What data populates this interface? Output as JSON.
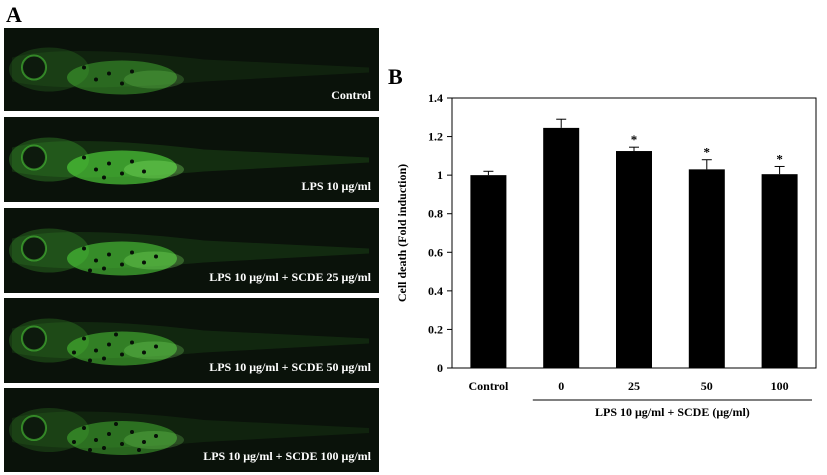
{
  "panel_a": {
    "letter": "A",
    "images": [
      {
        "label": "Control",
        "intensity": 0.55
      },
      {
        "label": "LPS 10 μg/ml",
        "intensity": 0.9
      },
      {
        "label": "LPS 10 μg/ml + SCDE 25 μg/ml",
        "intensity": 0.8
      },
      {
        "label": "LPS 10 μg/ml + SCDE 50 μg/ml",
        "intensity": 0.7
      },
      {
        "label": "LPS 10 μg/ml + SCDE 100 μg/ml",
        "intensity": 0.6
      }
    ],
    "colors": {
      "fluorescence": "#4fcf3a",
      "background": "#0a120a"
    }
  },
  "panel_b": {
    "letter": "B"
  },
  "chart_data": {
    "type": "bar",
    "categories": [
      "Control",
      "0",
      "25",
      "50",
      "100"
    ],
    "values": [
      1.0,
      1.245,
      1.125,
      1.03,
      1.005
    ],
    "errors": [
      0.02,
      0.045,
      0.02,
      0.05,
      0.04
    ],
    "significance": [
      "",
      "",
      "*",
      "*",
      "*"
    ],
    "ylabel": "Cell death (Fold induction)",
    "xlabel_group": "LPS 10 μg/ml + SCDE (μg/ml)",
    "ylim": [
      0,
      1.4
    ],
    "yticks": [
      0,
      0.2,
      0.4,
      0.6,
      0.8,
      1,
      1.2,
      1.4
    ],
    "bar_color": "#000000",
    "grid": false
  }
}
